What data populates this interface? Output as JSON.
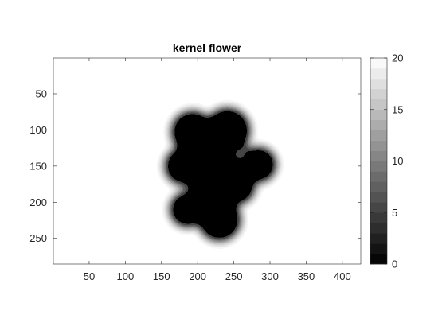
{
  "chart_data": {
    "type": "heatmap",
    "title": "kernel flower",
    "xlabel": "",
    "ylabel": "",
    "xlim": [
      0.5,
      425.5
    ],
    "ylim": [
      0.5,
      285.5
    ],
    "y_reversed": true,
    "x_ticks": [
      50,
      100,
      150,
      200,
      250,
      300,
      350,
      400
    ],
    "y_ticks": [
      50,
      100,
      150,
      200,
      250
    ],
    "grid": false,
    "colormap": "gray",
    "colormap_levels": 20,
    "clim": [
      0,
      20
    ],
    "colorbar": {
      "placement": "right",
      "ticks": [
        0,
        5,
        10,
        15,
        20
      ]
    },
    "background_value": 20,
    "kernel_value": 0,
    "edge_blur_width": 10,
    "kernel_shape": {
      "description": "union of disks (data units)",
      "disks": [
        {
          "cx": 222,
          "cy": 160,
          "r": 42
        },
        {
          "cx": 193,
          "cy": 103,
          "r": 33
        },
        {
          "cx": 241,
          "cy": 101,
          "r": 35
        },
        {
          "cx": 181,
          "cy": 150,
          "r": 30
        },
        {
          "cx": 186,
          "cy": 210,
          "r": 28
        },
        {
          "cx": 230,
          "cy": 224,
          "r": 33
        },
        {
          "cx": 284,
          "cy": 148,
          "r": 28
        },
        {
          "cx": 255,
          "cy": 178,
          "r": 28
        },
        {
          "cx": 215,
          "cy": 132,
          "r": 25
        }
      ]
    }
  }
}
